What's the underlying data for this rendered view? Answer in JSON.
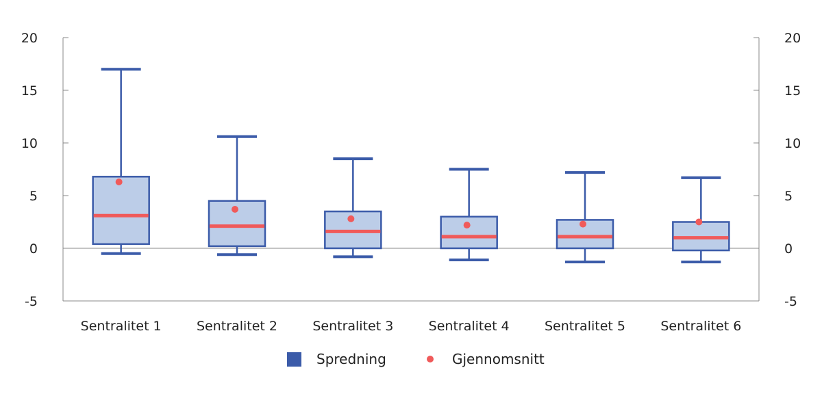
{
  "chart_data": {
    "type": "boxplot",
    "title": "",
    "xlabel": "",
    "ylabel": "",
    "ylim": [
      -5,
      20
    ],
    "yticks": [
      -5,
      0,
      5,
      10,
      15,
      20
    ],
    "ytick_labels": [
      "-5",
      "0",
      "5",
      "10",
      "15",
      "20"
    ],
    "secondary_axis": true,
    "grid": false,
    "legend_position": "bottom",
    "categories": [
      "Sentralitet 1",
      "Sentralitet 2",
      "Sentralitet 3",
      "Sentralitet 4",
      "Sentralitet 5",
      "Sentralitet 6"
    ],
    "series": [
      {
        "name": "Spredning",
        "color": "#3b5ba9",
        "fill": "#bccde8",
        "whisker_low": [
          -0.5,
          -0.6,
          -0.8,
          -1.1,
          -1.3,
          -1.3
        ],
        "q1": [
          0.4,
          0.2,
          0.0,
          0.0,
          0.0,
          -0.2
        ],
        "median": [
          3.1,
          2.1,
          1.6,
          1.1,
          1.1,
          1.0
        ],
        "q3": [
          6.8,
          4.5,
          3.5,
          3.0,
          2.7,
          2.5
        ],
        "whisker_high": [
          17.0,
          10.6,
          8.5,
          7.5,
          7.2,
          6.7
        ]
      },
      {
        "name": "Gjennomsnitt",
        "color": "#f05a5a",
        "values": [
          6.3,
          3.7,
          2.8,
          2.2,
          2.3,
          2.5
        ]
      }
    ]
  }
}
